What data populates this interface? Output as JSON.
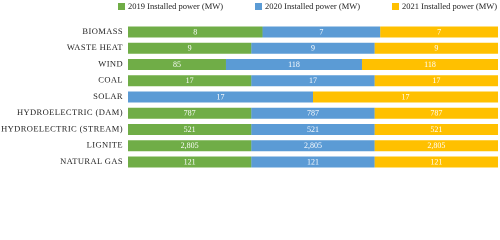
{
  "chart_data": {
    "type": "stacked-percent-bar",
    "categories": [
      "BIOMASS",
      "WASTE HEAT",
      "WIND",
      "COAL",
      "SOLAR",
      "HYDROELECTRIC (DAM)",
      "HYDROELECTRIC (STREAM)",
      "LIGNITE",
      "NATURAL GAS"
    ],
    "series": [
      {
        "name": "2019 Installed power (MW)",
        "color": "#70ad47",
        "values": [
          8,
          9,
          85,
          17,
          null,
          787,
          521,
          2805,
          121
        ],
        "value_labels": [
          "8",
          "9",
          "85",
          "17",
          null,
          "787",
          "521",
          "2,805",
          "121"
        ]
      },
      {
        "name": "2020 Installed power (MW)",
        "color": "#5b9bd5",
        "values": [
          7,
          9,
          118,
          17,
          17,
          787,
          521,
          2805,
          121
        ],
        "value_labels": [
          "7",
          "9",
          "118",
          "17",
          "17",
          "787",
          "521",
          "2,805",
          "121"
        ]
      },
      {
        "name": "2021 Installed power (MW)",
        "color": "#ffc000",
        "values": [
          7,
          9,
          118,
          17,
          17,
          787,
          521,
          2805,
          121
        ],
        "value_labels": [
          "7",
          "9",
          "118",
          "17",
          "17",
          "787",
          "521",
          "2,805",
          "121"
        ]
      }
    ],
    "legend": "top"
  }
}
